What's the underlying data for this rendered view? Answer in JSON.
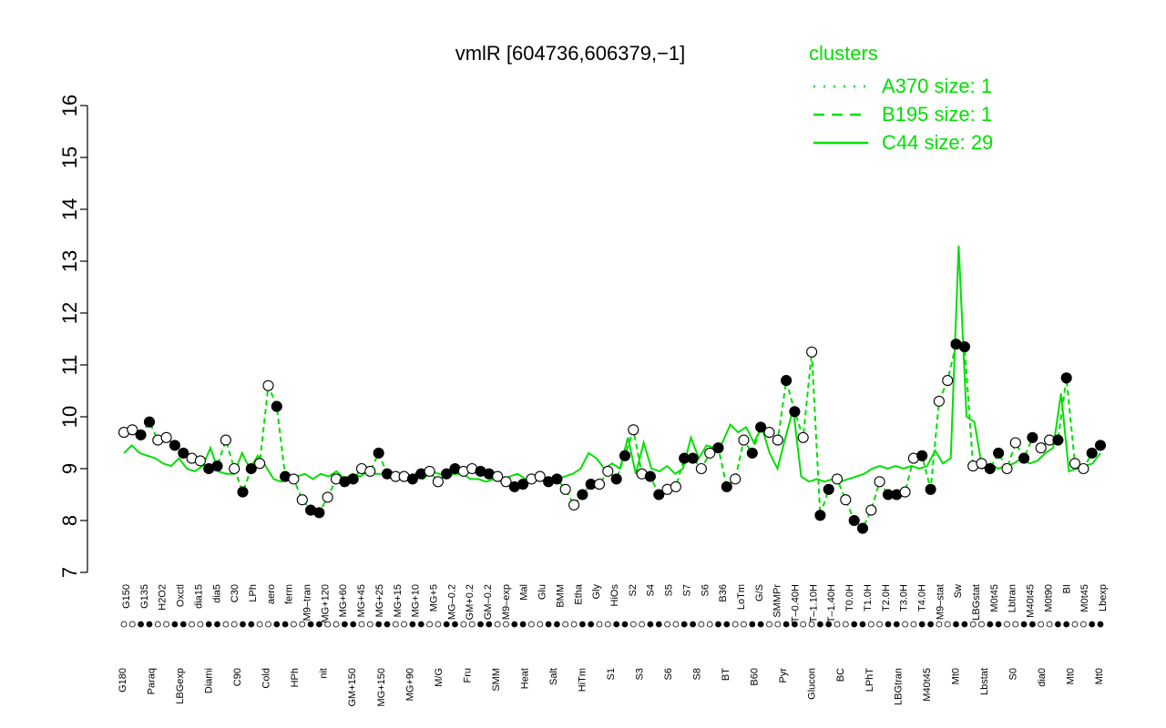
{
  "chart_data": {
    "type": "line",
    "title": "vmlR [604736,606379,−1]",
    "xlabel": "",
    "ylabel": "",
    "ylim": [
      7,
      16
    ],
    "yticks": [
      7,
      8,
      9,
      10,
      11,
      12,
      13,
      14,
      15,
      16
    ],
    "grid": false,
    "legend": {
      "title": "clusters",
      "position": "top-right",
      "entries": [
        {
          "label": "A370 size: 1",
          "style": "dotted"
        },
        {
          "label": "B195 size: 1",
          "style": "dashed"
        },
        {
          "label": "C44 size: 29",
          "style": "solid"
        }
      ]
    },
    "x_labels_top": [
      "G150",
      "G135",
      "H2O2",
      "Oxctl",
      "dia15",
      "dia5",
      "C30",
      "LPh",
      "aero",
      "ferm",
      "M9–tran",
      "MG+120",
      "MG+60",
      "MG+45",
      "MG+25",
      "MG+15",
      "MG+10",
      "MG+5",
      "MG–0.2",
      "GM+0.2",
      "GM–0.2",
      "M9–exp",
      "Mal",
      "Glu",
      "BMM",
      "Etha",
      "Gly",
      "HiOs",
      "S2",
      "S4",
      "S5",
      "S7",
      "S6",
      "B36",
      "LoTm",
      "G/S",
      "SMMPr",
      "T–0.40H",
      "T–1.10H",
      "T–1.40H",
      "T0.0H",
      "T1.0H",
      "T2.0H",
      "T3.0H",
      "T4.0H",
      "M9–stat",
      "Sw",
      "LBGstat",
      "M0t45",
      "Lbtran",
      "M40t45",
      "M0t90",
      "BI",
      "M0t45",
      "Lbexp"
    ],
    "x_labels_bottom": [
      "G180",
      "Paraq",
      "LBGexp",
      "Diami",
      "C90",
      "Cold",
      "HPh",
      "nit",
      "GM+150",
      "MG+150",
      "MG+90",
      "M/G",
      "Fru",
      "SMM",
      "Heat",
      "Salt",
      "HiTm",
      "S1",
      "S3",
      "S6",
      "S8",
      "BT",
      "B60",
      "Pyr",
      "Glucon",
      "BC",
      "LPhT",
      "LBGtran",
      "M40t45",
      "Mt0",
      "Lbstat",
      "S0",
      "dia0",
      "Mt0",
      "Mt0"
    ],
    "series": [
      {
        "name": "A370 size: 1",
        "style": "dotted",
        "color": "#00e000",
        "values": []
      },
      {
        "name": "B195 size: 1",
        "style": "dashed",
        "color": "#00e000",
        "values": [
          9.7,
          9.75,
          9.65,
          9.9,
          9.55,
          9.6,
          9.45,
          9.3,
          9.2,
          9.15,
          9.0,
          9.05,
          9.55,
          9.0,
          8.55,
          9.0,
          9.1,
          10.6,
          10.2,
          8.85,
          8.8,
          8.4,
          8.2,
          8.15,
          8.45,
          8.8,
          8.75,
          8.8,
          9.0,
          8.95,
          9.3,
          8.9,
          8.85,
          8.85,
          8.8,
          8.9,
          8.95,
          8.75,
          8.9,
          9.0,
          8.95,
          9.0,
          8.95,
          8.9,
          8.85,
          8.75,
          8.65,
          8.7,
          8.8,
          8.85,
          8.75,
          8.8,
          8.6,
          8.3,
          8.5,
          8.7,
          8.7,
          8.95,
          8.8,
          9.25,
          9.75,
          8.9,
          8.85,
          8.5,
          8.6,
          8.65,
          9.2,
          9.2,
          9.0,
          9.3,
          9.4,
          8.65,
          8.8,
          9.55,
          9.3,
          9.8,
          9.7,
          9.55,
          10.7,
          10.1,
          9.6,
          11.25,
          8.1,
          8.6,
          8.8,
          8.4,
          8.0,
          7.85,
          8.2,
          8.75,
          8.5,
          8.5,
          8.55,
          9.2,
          9.25,
          8.6,
          10.3,
          10.7,
          11.4,
          11.35,
          9.05,
          9.1,
          9.0,
          9.3,
          9.0,
          9.5,
          9.2,
          9.6,
          9.4,
          9.55,
          9.55,
          10.75,
          9.1,
          9.0,
          9.3,
          9.45
        ]
      },
      {
        "name": "C44 size: 29",
        "style": "solid",
        "color": "#00e000",
        "values": [
          9.3,
          9.45,
          9.3,
          9.25,
          9.2,
          9.1,
          9.05,
          9.2,
          9.0,
          8.95,
          9.05,
          9.4,
          8.95,
          8.9,
          8.9,
          9.3,
          9.0,
          9.25,
          9.05,
          8.8,
          8.75,
          8.8,
          8.85,
          8.9,
          8.8,
          8.9,
          8.85,
          8.95,
          8.8,
          8.9,
          8.85,
          8.95,
          8.9,
          8.9,
          8.85,
          8.9,
          8.8,
          8.9,
          8.8,
          8.95,
          8.9,
          8.85,
          8.9,
          8.9,
          8.8,
          8.8,
          8.75,
          8.8,
          8.75,
          8.85,
          8.9,
          8.8,
          8.75,
          8.8,
          8.7,
          8.8,
          8.85,
          8.9,
          9.0,
          9.3,
          9.2,
          9.0,
          9.1,
          9.0,
          9.6,
          8.9,
          9.5,
          9.0,
          8.95,
          9.05,
          8.9,
          9.0,
          9.6,
          9.2,
          9.45,
          9.4,
          9.5,
          9.85,
          9.7,
          9.8,
          9.5,
          9.8,
          9.3,
          9.0,
          9.6,
          10.15,
          8.85,
          8.75,
          8.8,
          8.75,
          8.8,
          8.75,
          8.8,
          8.85,
          8.9,
          9.0,
          9.05,
          9.0,
          9.05,
          9.0,
          9.05,
          9.0,
          9.05,
          9.35,
          9.1,
          9.2,
          13.3,
          10.0,
          9.9,
          9.0,
          9.1,
          9.0,
          9.05,
          9.1,
          9.2,
          9.1,
          9.15,
          9.3,
          9.4,
          10.45,
          8.95,
          9.0,
          9.05,
          9.1,
          9.3
        ]
      }
    ],
    "points": [
      9.7,
      9.75,
      9.65,
      9.9,
      9.55,
      9.6,
      9.45,
      9.3,
      9.2,
      9.15,
      9.0,
      9.05,
      9.55,
      9.0,
      8.55,
      9.0,
      9.1,
      10.6,
      10.2,
      8.85,
      8.8,
      8.4,
      8.2,
      8.15,
      8.45,
      8.8,
      8.75,
      8.8,
      9.0,
      8.95,
      9.3,
      8.9,
      8.85,
      8.85,
      8.8,
      8.9,
      8.95,
      8.75,
      8.9,
      9.0,
      8.95,
      9.0,
      8.95,
      8.9,
      8.85,
      8.75,
      8.65,
      8.7,
      8.8,
      8.85,
      8.75,
      8.8,
      8.6,
      8.3,
      8.5,
      8.7,
      8.7,
      8.95,
      8.8,
      9.25,
      9.75,
      8.9,
      8.85,
      8.5,
      8.6,
      8.65,
      9.2,
      9.2,
      9.0,
      9.3,
      9.4,
      8.65,
      8.8,
      9.55,
      9.3,
      9.8,
      9.7,
      9.55,
      10.7,
      10.1,
      9.6,
      11.25,
      8.1,
      8.6,
      8.8,
      8.4,
      8.0,
      7.85,
      8.2,
      8.75,
      8.5,
      8.5,
      8.55,
      9.2,
      9.25,
      8.6,
      10.3,
      10.7,
      11.4,
      11.35,
      9.05,
      9.1,
      9.0,
      9.3,
      9.0,
      9.5,
      9.2,
      9.6,
      9.4,
      9.55,
      9.55,
      10.75,
      9.1,
      9.0,
      9.3,
      9.45
    ]
  }
}
